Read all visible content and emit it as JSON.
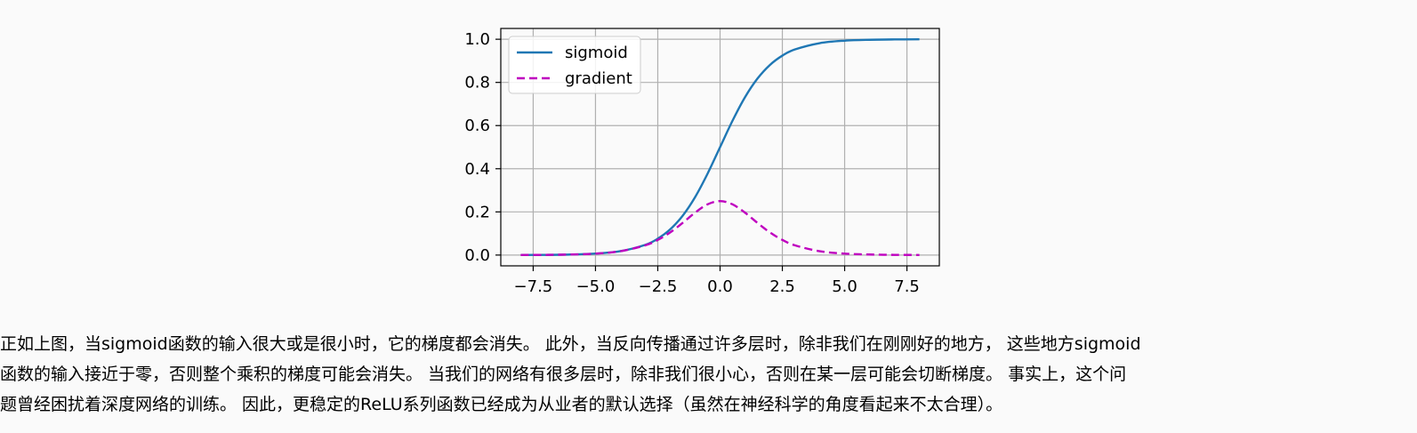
{
  "chart_data": {
    "type": "line",
    "title": "",
    "xlabel": "",
    "ylabel": "",
    "xlim": [
      -8.8,
      8.8
    ],
    "ylim": [
      -0.05,
      1.05
    ],
    "xticks": [
      -7.5,
      -5.0,
      -2.5,
      0.0,
      2.5,
      5.0,
      7.5
    ],
    "xtick_labels": [
      "−7.5",
      "−5.0",
      "−2.5",
      "0.0",
      "2.5",
      "5.0",
      "7.5"
    ],
    "yticks": [
      0.0,
      0.2,
      0.4,
      0.6,
      0.8,
      1.0
    ],
    "ytick_labels": [
      "0.0",
      "0.2",
      "0.4",
      "0.6",
      "0.8",
      "1.0"
    ],
    "grid": true,
    "legend_position": "top-left",
    "x": [
      -8.0,
      -7.0,
      -6.0,
      -5.0,
      -4.0,
      -3.0,
      -2.5,
      -2.0,
      -1.5,
      -1.0,
      -0.5,
      0.0,
      0.5,
      1.0,
      1.5,
      2.0,
      2.5,
      3.0,
      4.0,
      5.0,
      6.0,
      7.0,
      8.0
    ],
    "series": [
      {
        "name": "sigmoid",
        "color": "#1f77b4",
        "style": "solid",
        "values": [
          0.0003,
          0.0009,
          0.0025,
          0.0067,
          0.018,
          0.0474,
          0.0759,
          0.1192,
          0.1824,
          0.2689,
          0.3775,
          0.5,
          0.6225,
          0.7311,
          0.8176,
          0.8808,
          0.9241,
          0.9526,
          0.982,
          0.9933,
          0.9975,
          0.9991,
          0.9997
        ]
      },
      {
        "name": "gradient",
        "color": "#bf00bf",
        "style": "dashed",
        "values": [
          0.0003,
          0.0009,
          0.0025,
          0.0066,
          0.0177,
          0.0452,
          0.0701,
          0.105,
          0.1491,
          0.1966,
          0.235,
          0.25,
          0.235,
          0.1966,
          0.1491,
          0.105,
          0.0701,
          0.0452,
          0.0177,
          0.0066,
          0.0025,
          0.0009,
          0.0003
        ]
      }
    ]
  },
  "paragraph": {
    "lines": [
      "正如上图，当sigmoid函数的输入很大或是很小时，它的梯度都会消失。 此外，当反向传播通过许多层时，除非我们在刚刚好的地方， 这些地方sigmoid",
      "函数的输入接近于零，否则整个乘积的梯度可能会消失。 当我们的网络有很多层时，除非我们很小心，否则在某一层可能会切断梯度。 事实上，这个问",
      "题曾经困扰着深度网络的训练。 因此，更稳定的ReLU系列函数已经成为从业者的默认选择（虽然在神经科学的角度看起来不太合理）。"
    ]
  }
}
